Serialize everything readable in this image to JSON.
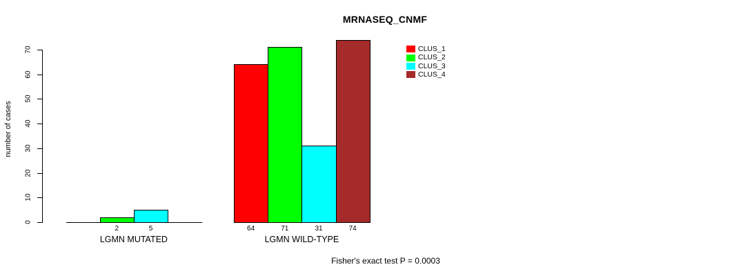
{
  "chart_data": {
    "type": "bar",
    "title": "MRNASEQ_CNMF",
    "xlabel": "",
    "ylabel": "number of cases",
    "ylim": [
      0,
      70
    ],
    "yticks": [
      0,
      10,
      20,
      30,
      40,
      50,
      60,
      70
    ],
    "grid": false,
    "legend_position": "top-right",
    "categories": [
      "LGMN MUTATED",
      "LGMN WILD-TYPE"
    ],
    "series": [
      {
        "name": "CLUS_1",
        "color": "#FF0000",
        "values": [
          0,
          64
        ]
      },
      {
        "name": "CLUS_2",
        "color": "#00FF00",
        "values": [
          2,
          71
        ]
      },
      {
        "name": "CLUS_3",
        "color": "#00FFFF",
        "values": [
          5,
          31
        ]
      },
      {
        "name": "CLUS_4",
        "color": "#A52A2A",
        "values": [
          0,
          74
        ]
      }
    ],
    "visible_bar_value_labels": [
      "2",
      "5",
      "64",
      "71",
      "31",
      "74"
    ],
    "annotation": "Fisher's exact test P = 0.0003"
  }
}
